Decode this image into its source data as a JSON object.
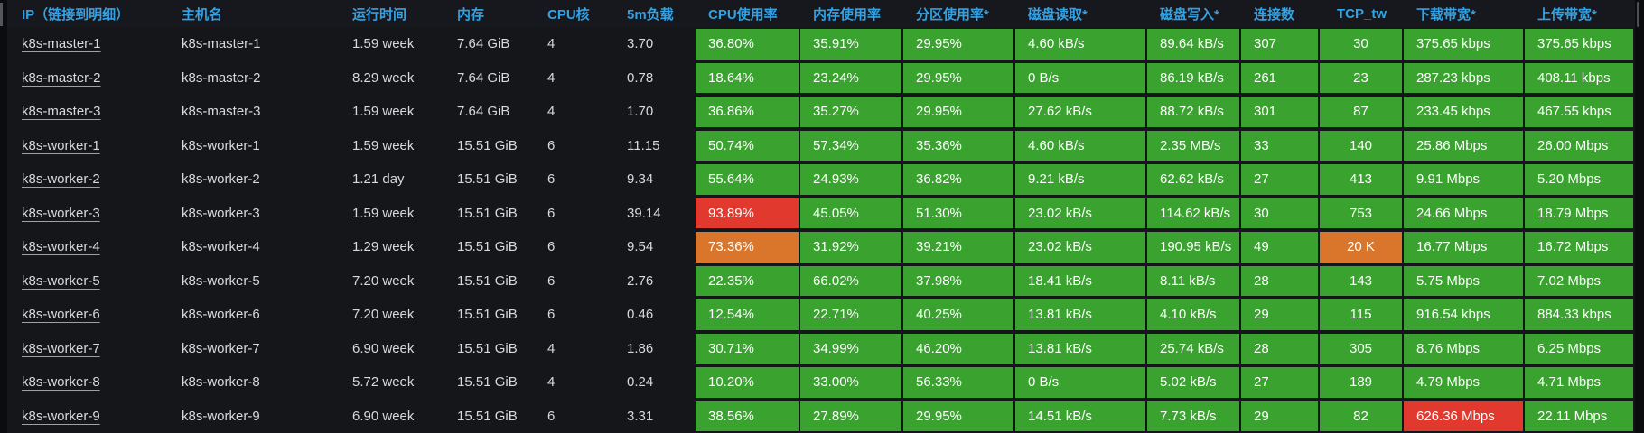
{
  "colors": {
    "green": "#3aa32f",
    "orange": "#d9762b",
    "red": "#e2392e",
    "header_text": "#33a2e5",
    "row_bg": "#141619",
    "header_bg": "#17181d",
    "page_bg": "#0b0c0e",
    "cell_text": "#ffffff",
    "body_text": "#d8d9da"
  },
  "table": {
    "columns": [
      {
        "key": "ip",
        "label": "IP（链接到明细）",
        "type": "link"
      },
      {
        "key": "hostname",
        "label": "主机名",
        "type": "text"
      },
      {
        "key": "uptime",
        "label": "运行时间",
        "type": "text"
      },
      {
        "key": "memory",
        "label": "内存",
        "type": "text"
      },
      {
        "key": "cores",
        "label": "CPU核",
        "type": "text"
      },
      {
        "key": "load5m",
        "label": "5m负载",
        "type": "text"
      },
      {
        "key": "cpu_usage",
        "label": "CPU使用率",
        "type": "metric"
      },
      {
        "key": "mem_usage",
        "label": "内存使用率",
        "type": "metric"
      },
      {
        "key": "part_usage",
        "label": "分区使用率*",
        "type": "metric"
      },
      {
        "key": "disk_read",
        "label": "磁盘读取*",
        "type": "metric"
      },
      {
        "key": "disk_write",
        "label": "磁盘写入*",
        "type": "metric"
      },
      {
        "key": "connections",
        "label": "连接数",
        "type": "metric"
      },
      {
        "key": "tcp_tw",
        "label": "TCP_tw",
        "type": "metric",
        "align": "center"
      },
      {
        "key": "download_bw",
        "label": "下载带宽*",
        "type": "metric"
      },
      {
        "key": "upload_bw",
        "label": "上传带宽*",
        "type": "metric"
      }
    ],
    "rows": [
      {
        "ip": "k8s-master-1",
        "hostname": "k8s-master-1",
        "uptime": "1.59 week",
        "memory": "7.64 GiB",
        "cores": "4",
        "load5m": "3.70",
        "metrics": [
          {
            "v": "36.80%"
          },
          {
            "v": "35.91%"
          },
          {
            "v": "29.95%"
          },
          {
            "v": "4.60 kB/s"
          },
          {
            "v": "89.64 kB/s"
          },
          {
            "v": "307"
          },
          {
            "v": "30"
          },
          {
            "v": "375.65 kbps"
          },
          {
            "v": "375.65 kbps"
          }
        ]
      },
      {
        "ip": "k8s-master-2",
        "hostname": "k8s-master-2",
        "uptime": "8.29 week",
        "memory": "7.64 GiB",
        "cores": "4",
        "load5m": "0.78",
        "metrics": [
          {
            "v": "18.64%"
          },
          {
            "v": "23.24%"
          },
          {
            "v": "29.95%"
          },
          {
            "v": "0 B/s"
          },
          {
            "v": "86.19 kB/s"
          },
          {
            "v": "261"
          },
          {
            "v": "23"
          },
          {
            "v": "287.23 kbps"
          },
          {
            "v": "408.11 kbps"
          }
        ]
      },
      {
        "ip": "k8s-master-3",
        "hostname": "k8s-master-3",
        "uptime": "1.59 week",
        "memory": "7.64 GiB",
        "cores": "4",
        "load5m": "1.70",
        "metrics": [
          {
            "v": "36.86%"
          },
          {
            "v": "35.27%"
          },
          {
            "v": "29.95%"
          },
          {
            "v": "27.62 kB/s"
          },
          {
            "v": "88.72 kB/s"
          },
          {
            "v": "301"
          },
          {
            "v": "87"
          },
          {
            "v": "233.45 kbps"
          },
          {
            "v": "467.55 kbps"
          }
        ]
      },
      {
        "ip": "k8s-worker-1",
        "hostname": "k8s-worker-1",
        "uptime": "1.59 week",
        "memory": "15.51 GiB",
        "cores": "6",
        "load5m": "11.15",
        "metrics": [
          {
            "v": "50.74%"
          },
          {
            "v": "57.34%"
          },
          {
            "v": "35.36%"
          },
          {
            "v": "4.60 kB/s"
          },
          {
            "v": "2.35 MB/s"
          },
          {
            "v": "33"
          },
          {
            "v": "140"
          },
          {
            "v": "25.86 Mbps"
          },
          {
            "v": "26.00 Mbps"
          }
        ]
      },
      {
        "ip": "k8s-worker-2",
        "hostname": "k8s-worker-2",
        "uptime": "1.21 day",
        "memory": "15.51 GiB",
        "cores": "6",
        "load5m": "9.34",
        "metrics": [
          {
            "v": "55.64%"
          },
          {
            "v": "24.93%"
          },
          {
            "v": "36.82%"
          },
          {
            "v": "9.21 kB/s"
          },
          {
            "v": "62.62 kB/s"
          },
          {
            "v": "27"
          },
          {
            "v": "413"
          },
          {
            "v": "9.91 Mbps"
          },
          {
            "v": "5.20 Mbps"
          }
        ]
      },
      {
        "ip": "k8s-worker-3",
        "hostname": "k8s-worker-3",
        "uptime": "1.59 week",
        "memory": "15.51 GiB",
        "cores": "6",
        "load5m": "39.14",
        "metrics": [
          {
            "v": "93.89%",
            "c": "red"
          },
          {
            "v": "45.05%"
          },
          {
            "v": "51.30%"
          },
          {
            "v": "23.02 kB/s"
          },
          {
            "v": "114.62 kB/s"
          },
          {
            "v": "30"
          },
          {
            "v": "753"
          },
          {
            "v": "24.66 Mbps"
          },
          {
            "v": "18.79 Mbps"
          }
        ]
      },
      {
        "ip": "k8s-worker-4",
        "hostname": "k8s-worker-4",
        "uptime": "1.29 week",
        "memory": "15.51 GiB",
        "cores": "6",
        "load5m": "9.54",
        "metrics": [
          {
            "v": "73.36%",
            "c": "orange"
          },
          {
            "v": "31.92%"
          },
          {
            "v": "39.21%"
          },
          {
            "v": "23.02 kB/s"
          },
          {
            "v": "190.95 kB/s"
          },
          {
            "v": "49"
          },
          {
            "v": "20 K",
            "c": "orange"
          },
          {
            "v": "16.77 Mbps"
          },
          {
            "v": "16.72 Mbps"
          }
        ]
      },
      {
        "ip": "k8s-worker-5",
        "hostname": "k8s-worker-5",
        "uptime": "7.20 week",
        "memory": "15.51 GiB",
        "cores": "6",
        "load5m": "2.76",
        "metrics": [
          {
            "v": "22.35%"
          },
          {
            "v": "66.02%"
          },
          {
            "v": "37.98%"
          },
          {
            "v": "18.41 kB/s"
          },
          {
            "v": "8.11 kB/s"
          },
          {
            "v": "28"
          },
          {
            "v": "143"
          },
          {
            "v": "5.75 Mbps"
          },
          {
            "v": "7.02 Mbps"
          }
        ]
      },
      {
        "ip": "k8s-worker-6",
        "hostname": "k8s-worker-6",
        "uptime": "7.20 week",
        "memory": "15.51 GiB",
        "cores": "6",
        "load5m": "0.46",
        "metrics": [
          {
            "v": "12.54%"
          },
          {
            "v": "22.71%"
          },
          {
            "v": "40.25%"
          },
          {
            "v": "13.81 kB/s"
          },
          {
            "v": "4.10 kB/s"
          },
          {
            "v": "29"
          },
          {
            "v": "115"
          },
          {
            "v": "916.54 kbps"
          },
          {
            "v": "884.33 kbps"
          }
        ]
      },
      {
        "ip": "k8s-worker-7",
        "hostname": "k8s-worker-7",
        "uptime": "6.90 week",
        "memory": "15.51 GiB",
        "cores": "4",
        "load5m": "1.86",
        "metrics": [
          {
            "v": "30.71%"
          },
          {
            "v": "34.99%"
          },
          {
            "v": "46.20%"
          },
          {
            "v": "13.81 kB/s"
          },
          {
            "v": "25.74 kB/s"
          },
          {
            "v": "28"
          },
          {
            "v": "305"
          },
          {
            "v": "8.76 Mbps"
          },
          {
            "v": "6.25 Mbps"
          }
        ]
      },
      {
        "ip": "k8s-worker-8",
        "hostname": "k8s-worker-8",
        "uptime": "5.72 week",
        "memory": "15.51 GiB",
        "cores": "4",
        "load5m": "0.24",
        "metrics": [
          {
            "v": "10.20%"
          },
          {
            "v": "33.00%"
          },
          {
            "v": "56.33%"
          },
          {
            "v": "0 B/s"
          },
          {
            "v": "5.02 kB/s"
          },
          {
            "v": "27"
          },
          {
            "v": "189"
          },
          {
            "v": "4.79 Mbps"
          },
          {
            "v": "4.71 Mbps"
          }
        ]
      },
      {
        "ip": "k8s-worker-9",
        "hostname": "k8s-worker-9",
        "uptime": "6.90 week",
        "memory": "15.51 GiB",
        "cores": "6",
        "load5m": "3.31",
        "metrics": [
          {
            "v": "38.56%"
          },
          {
            "v": "27.89%"
          },
          {
            "v": "29.95%"
          },
          {
            "v": "14.51 kB/s"
          },
          {
            "v": "7.73 kB/s"
          },
          {
            "v": "29"
          },
          {
            "v": "82"
          },
          {
            "v": "626.36 Mbps",
            "c": "red"
          },
          {
            "v": "22.11 Mbps"
          }
        ]
      }
    ]
  }
}
